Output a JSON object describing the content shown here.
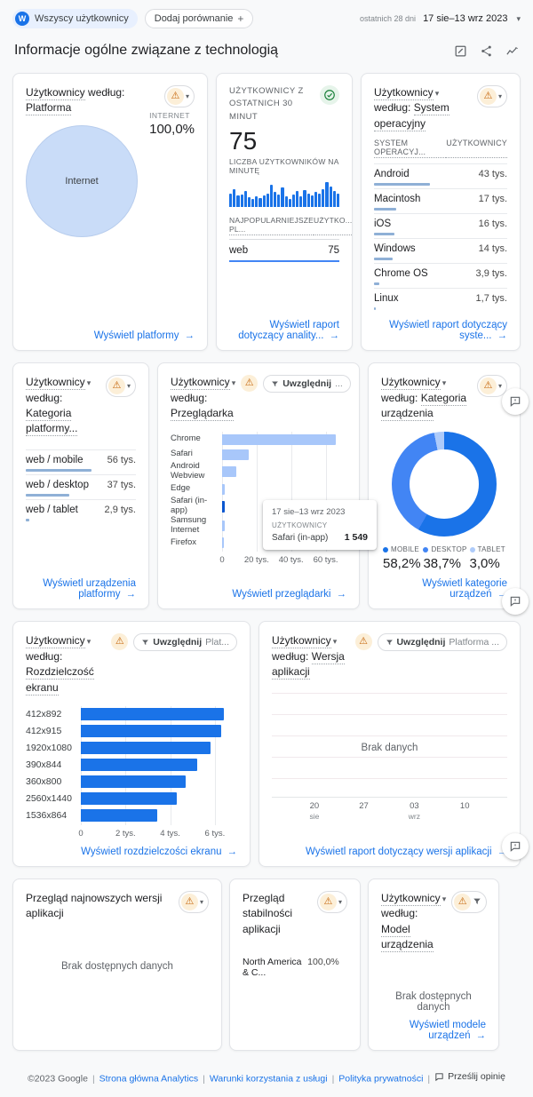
{
  "header": {
    "avatar_letter": "W",
    "audience_chip": "Wszyscy użytkownicy",
    "comparison_chip": "Dodaj porównanie",
    "comparison_plus": "+",
    "date_range_hint": "ostatnich 28 dni",
    "date_range": "17 sie–13 wrz 2023",
    "page_title": "Informacje ogólne związane z technologią"
  },
  "cards": {
    "platform": {
      "title_user": "Użytkownicy",
      "title_by": "według:",
      "dimension": "Platforma",
      "metric_label": "INTERNET",
      "metric_value": "100,0%",
      "pie_label": "Internet",
      "pie_color": "#c9dcf8",
      "link": "Wyświetl platformy"
    },
    "realtime": {
      "title": "UŻYTKOWNICY Z OSTATNICH 30 MINUT",
      "value": "75",
      "per_minute_label": "LICZBA UŻYTKOWNIKÓW NA MINUTĘ",
      "sparkline": [
        52,
        72,
        45,
        50,
        62,
        40,
        30,
        42,
        34,
        46,
        52,
        88,
        60,
        50,
        78,
        42,
        32,
        50,
        62,
        42,
        68,
        52,
        44,
        60,
        52,
        70,
        100,
        80,
        62,
        52
      ],
      "col1": "NAJPOPULARNIEJSZE PL...",
      "col2": "UŻYTKO...",
      "rows": [
        {
          "name": "web",
          "value": "75"
        }
      ],
      "link": "Wyświetl raport dotyczący anality..."
    },
    "os": {
      "title_user": "Użytkownicy",
      "title_by": "według:",
      "dimension": "System operacyjny",
      "col1": "SYSTEM OPERACYJ...",
      "col2": "UŻYTKOWNICY",
      "rows": [
        {
          "name": "Android",
          "value": "43 tys.",
          "num": 43000
        },
        {
          "name": "Macintosh",
          "value": "17 tys.",
          "num": 17000
        },
        {
          "name": "iOS",
          "value": "16 tys.",
          "num": 16000
        },
        {
          "name": "Windows",
          "value": "14 tys.",
          "num": 14000
        },
        {
          "name": "Chrome OS",
          "value": "3,9 tys.",
          "num": 3900
        },
        {
          "name": "Linux",
          "value": "1,7 tys.",
          "num": 1700
        }
      ],
      "link": "Wyświetl raport dotyczący syste..."
    },
    "platform_category": {
      "title_user": "Użytkownicy",
      "title_by": "według:",
      "dimension": "Kategoria platformy...",
      "rows": [
        {
          "name": "web / mobile",
          "value": "56 tys.",
          "num": 56000
        },
        {
          "name": "web / desktop",
          "value": "37 tys.",
          "num": 37000
        },
        {
          "name": "web / tablet",
          "value": "2,9 tys.",
          "num": 2900
        }
      ],
      "link": "Wyświetl urządzenia platformy"
    },
    "browser": {
      "title_user": "Użytkownicy",
      "title_by": "według:",
      "dimension": "Przeglądarka",
      "filter_chip_bold": "Uwzględnij",
      "filter_chip_rest": "...",
      "bars": [
        {
          "label": "Chrome",
          "num": 66000
        },
        {
          "label": "Safari",
          "num": 15500
        },
        {
          "label": "Android Webview",
          "num": 8300
        },
        {
          "label": "Edge",
          "num": 1800
        },
        {
          "label": "Safari (in-app)",
          "num": 1549,
          "highlight": true
        },
        {
          "label": "Samsung Internet",
          "num": 1400
        },
        {
          "label": "Firefox",
          "num": 900
        }
      ],
      "xmax": 70000,
      "ticks": [
        {
          "label": "0",
          "num": 0
        },
        {
          "label": "20 tys.",
          "num": 20000
        },
        {
          "label": "40 tys.",
          "num": 40000
        },
        {
          "label": "60 tys.",
          "num": 60000
        }
      ],
      "tooltip": {
        "date": "17 sie–13 wrz 2023",
        "metric": "UŻYTKOWNICY",
        "name": "Safari (in-app)",
        "value": "1 549"
      },
      "link": "Wyświetl przeglądarki"
    },
    "device_category": {
      "title_user": "Użytkownicy",
      "title_by": "według:",
      "dimension": "Kategoria urządzenia",
      "slices": [
        {
          "label": "MOBILE",
          "pct": "58,2%",
          "value": 58.2,
          "color": "#1a73e8"
        },
        {
          "label": "DESKTOP",
          "pct": "38,7%",
          "value": 38.7,
          "color": "#4285f4"
        },
        {
          "label": "TABLET",
          "pct": "3,0%",
          "value": 3.0,
          "color": "#aecbfa"
        }
      ],
      "link": "Wyświetl kategorie urządzeń"
    },
    "resolution": {
      "title_user": "Użytkownicy",
      "title_by": "według:",
      "dimension": "Rozdzielczość ekranu",
      "filter_chip_bold": "Uwzględnij",
      "filter_chip_rest": "Plat...",
      "bars": [
        {
          "label": "412x892",
          "num": 6400
        },
        {
          "label": "412x915",
          "num": 6300
        },
        {
          "label": "1920x1080",
          "num": 5800
        },
        {
          "label": "390x844",
          "num": 5200
        },
        {
          "label": "360x800",
          "num": 4700
        },
        {
          "label": "2560x1440",
          "num": 4300
        },
        {
          "label": "1536x864",
          "num": 3400
        }
      ],
      "xmax": 6600,
      "ticks": [
        {
          "label": "0",
          "num": 0
        },
        {
          "label": "2 tys.",
          "num": 2000
        },
        {
          "label": "4 tys.",
          "num": 4000
        },
        {
          "label": "6 tys.",
          "num": 6000
        }
      ],
      "link": "Wyświetl rozdzielczości ekranu"
    },
    "app_version": {
      "title_user": "Użytkownicy",
      "title_by": "według:",
      "dimension": "Wersja aplikacji",
      "filter_chip_bold": "Uwzględnij",
      "filter_chip_rest": "Platforma ...",
      "empty": "Brak danych",
      "ticks": [
        {
          "day": "20",
          "month": "sie"
        },
        {
          "day": "27",
          "month": ""
        },
        {
          "day": "03",
          "month": "wrz"
        },
        {
          "day": "10",
          "month": ""
        }
      ],
      "link": "Wyświetl raport dotyczący wersji aplikacji"
    },
    "latest_versions": {
      "title": "Przegląd najnowszych wersji aplikacji",
      "empty": "Brak dostępnych danych"
    },
    "stability": {
      "title": "Przegląd stabilności aplikacji",
      "rows": [
        {
          "name": "North America & C...",
          "value": "100,0%"
        }
      ]
    },
    "device_model": {
      "title_user": "Użytkownicy",
      "title_by": "według:",
      "dimension": "Model urządzenia",
      "empty": "Brak dostępnych danych",
      "link": "Wyświetl modele urządzeń"
    }
  },
  "footer": {
    "copyright": "©2023 Google",
    "links": [
      "Strona główna Analytics",
      "Warunki korzystania z usługi",
      "Polityka prywatności"
    ],
    "feedback": "Prześlij opinię"
  }
}
